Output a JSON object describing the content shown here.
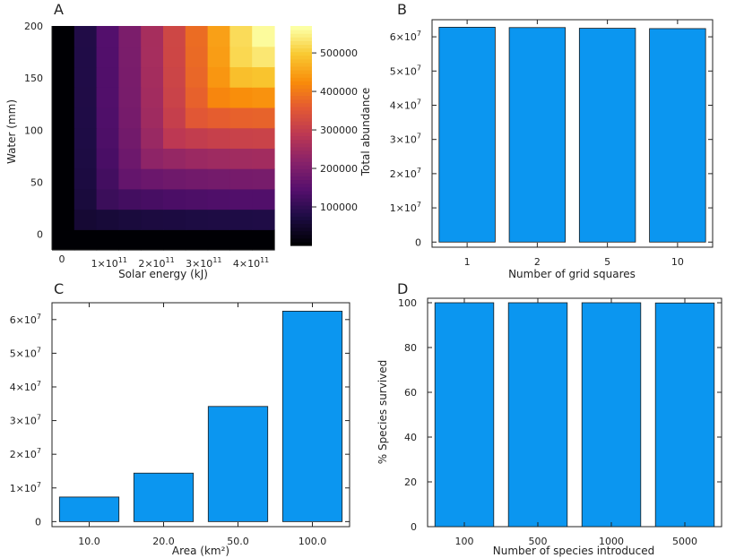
{
  "colors": {
    "bar": "#0b96f0",
    "bar_edge": "#1a1a1a",
    "axis": "#222222"
  },
  "chart_data": [
    {
      "panel": "A",
      "type": "heatmap",
      "xlabel": "Solar energy (kJ)",
      "ylabel": "Water (mm)",
      "colorbar_label": "Total abundance",
      "colormap": "inferno",
      "vmin": 0,
      "vmax": 570000,
      "x_ticks": [
        "0",
        "1×10",
        "2×10",
        "3×10",
        "4×10"
      ],
      "x_tick_exps": [
        "",
        "11",
        "11",
        "11",
        "11"
      ],
      "x_tick_values": [
        0,
        100000000000.0,
        200000000000.0,
        300000000000.0,
        400000000000.0
      ],
      "x_range": [
        0,
        470000000000.0
      ],
      "y_ticks": [
        "0",
        "50",
        "100",
        "150",
        "200"
      ],
      "y_tick_values": [
        0,
        50,
        100,
        150,
        200
      ],
      "y_range": [
        -15,
        200
      ],
      "colorbar_ticks": [
        "100000",
        "200000",
        "300000",
        "400000",
        "500000"
      ],
      "colorbar_tick_values": [
        100000,
        200000,
        300000,
        400000,
        500000
      ],
      "grid_values": [
        [
          0,
          0,
          0,
          0,
          0,
          0,
          0,
          0,
          0,
          0
        ],
        [
          0,
          55000,
          60000,
          65000,
          68000,
          70000,
          72000,
          73000,
          74000,
          75000
        ],
        [
          0,
          65000,
          110000,
          120000,
          125000,
          130000,
          133000,
          135000,
          137000,
          138000
        ],
        [
          0,
          70000,
          120000,
          165000,
          175000,
          180000,
          185000,
          188000,
          190000,
          192000
        ],
        [
          0,
          72000,
          128000,
          178000,
          225000,
          235000,
          242000,
          247000,
          250000,
          252000
        ],
        [
          0,
          74000,
          132000,
          185000,
          240000,
          290000,
          300000,
          306000,
          310000,
          312000
        ],
        [
          0,
          75000,
          135000,
          190000,
          248000,
          305000,
          355000,
          365000,
          370000,
          372000
        ],
        [
          0,
          76000,
          137000,
          193000,
          252000,
          312000,
          370000,
          420000,
          430000,
          435000
        ],
        [
          0,
          77000,
          138000,
          195000,
          255000,
          316000,
          378000,
          440000,
          490000,
          495000
        ],
        [
          0,
          77000,
          139000,
          196000,
          257000,
          319000,
          382000,
          448000,
          520000,
          540000
        ],
        [
          0,
          78000,
          140000,
          197000,
          258000,
          320000,
          385000,
          452000,
          525000,
          565000
        ]
      ]
    },
    {
      "panel": "B",
      "type": "bar",
      "xlabel": "Number of grid squares",
      "ylabel": "",
      "categories": [
        "1",
        "2",
        "5",
        "10"
      ],
      "values": [
        62800000,
        62700000,
        62500000,
        62400000
      ],
      "ylim": [
        -1500000,
        65000000
      ],
      "y_tick_values": [
        0,
        10000000,
        20000000,
        30000000,
        40000000,
        50000000,
        60000000
      ],
      "y_tick_bases": [
        "0",
        "1×10",
        "2×10",
        "3×10",
        "4×10",
        "5×10",
        "6×10"
      ],
      "y_tick_exps": [
        "",
        "7",
        "7",
        "7",
        "7",
        "7",
        "7"
      ]
    },
    {
      "panel": "C",
      "type": "bar",
      "xlabel": "Area (km²)",
      "ylabel": "",
      "categories": [
        "10.0",
        "20.0",
        "50.0",
        "100.0"
      ],
      "values": [
        7300000,
        14400000,
        34200000,
        62500000
      ],
      "ylim": [
        -1500000,
        65000000
      ],
      "y_tick_values": [
        0,
        10000000,
        20000000,
        30000000,
        40000000,
        50000000,
        60000000
      ],
      "y_tick_bases": [
        "0",
        "1×10",
        "2×10",
        "3×10",
        "4×10",
        "5×10",
        "6×10"
      ],
      "y_tick_exps": [
        "",
        "7",
        "7",
        "7",
        "7",
        "7",
        "7"
      ]
    },
    {
      "panel": "D",
      "type": "bar",
      "xlabel": "Number of species introduced",
      "ylabel": "% Species survived",
      "categories": [
        "100",
        "500",
        "1000",
        "5000"
      ],
      "values": [
        100,
        100,
        100,
        99.9
      ],
      "ylim": [
        0,
        102
      ],
      "y_tick_values": [
        0,
        20,
        40,
        60,
        80,
        100
      ],
      "y_tick_bases": [
        "0",
        "20",
        "40",
        "60",
        "80",
        "100"
      ],
      "y_tick_exps": [
        "",
        "",
        "",
        "",
        "",
        ""
      ]
    }
  ]
}
